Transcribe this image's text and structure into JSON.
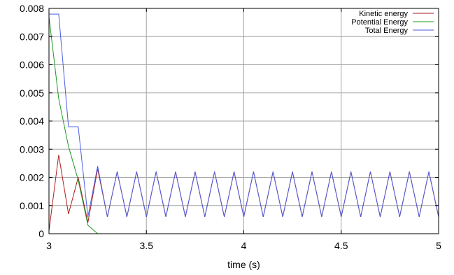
{
  "chart_data": {
    "type": "line",
    "title": "",
    "xlabel": "time (s)",
    "ylabel": "",
    "xlim": [
      3,
      5
    ],
    "ylim": [
      0,
      0.008
    ],
    "x_ticks": [
      3,
      3.5,
      4,
      4.5,
      5
    ],
    "x_tick_labels": [
      "3",
      "3.5",
      "4",
      "4.5",
      "5"
    ],
    "y_ticks": [
      0,
      0.001,
      0.002,
      0.003,
      0.004,
      0.005,
      0.006,
      0.007,
      0.008
    ],
    "y_tick_labels": [
      "0",
      "0.001",
      "0.002",
      "0.003",
      "0.004",
      "0.005",
      "0.006",
      "0.007",
      "0.008"
    ],
    "grid": true,
    "legend_position": "top-right",
    "series": [
      {
        "name": "Kinetic energy",
        "color": "#b01c1c",
        "x": [
          3.0,
          3.05,
          3.1,
          3.15,
          3.2,
          3.25,
          3.3,
          3.35,
          3.4,
          3.45,
          3.5,
          3.55,
          3.6,
          3.65,
          3.7,
          3.75,
          3.8,
          3.85,
          3.9,
          3.95,
          4.0,
          4.05,
          4.1,
          4.15,
          4.2,
          4.25,
          4.3,
          4.35,
          4.4,
          4.45,
          4.5,
          4.55,
          4.6,
          4.65,
          4.7,
          4.75,
          4.8,
          4.85,
          4.9,
          4.95,
          5.0
        ],
        "y": [
          0.0001,
          0.0028,
          0.0007,
          0.002,
          0.0004,
          0.0023,
          0.0006,
          0.0022,
          0.0006,
          0.0022,
          0.0006,
          0.0022,
          0.0006,
          0.0022,
          0.0006,
          0.0022,
          0.0006,
          0.0022,
          0.0006,
          0.0022,
          0.0006,
          0.0022,
          0.0006,
          0.0022,
          0.0006,
          0.0022,
          0.0006,
          0.0022,
          0.0006,
          0.0022,
          0.0006,
          0.0022,
          0.0006,
          0.0022,
          0.0006,
          0.0022,
          0.0006,
          0.0022,
          0.0006,
          0.0022,
          0.0006
        ]
      },
      {
        "name": "Potential Energy",
        "color": "#1f9a1f",
        "x": [
          3.0,
          3.05,
          3.1,
          3.15,
          3.2,
          3.25,
          5.0
        ],
        "y": [
          0.0077,
          0.0048,
          0.0031,
          0.0019,
          0.0003,
          0.0,
          0.0
        ]
      },
      {
        "name": "Total Energy",
        "color": "#4a5ee0",
        "x": [
          3.0,
          3.05,
          3.1,
          3.15,
          3.2,
          3.25,
          3.3,
          3.35,
          3.4,
          3.45,
          3.5,
          3.55,
          3.6,
          3.65,
          3.7,
          3.75,
          3.8,
          3.85,
          3.9,
          3.95,
          4.0,
          4.05,
          4.1,
          4.15,
          4.2,
          4.25,
          4.3,
          4.35,
          4.4,
          4.45,
          4.5,
          4.55,
          4.6,
          4.65,
          4.7,
          4.75,
          4.8,
          4.85,
          4.9,
          4.95,
          5.0
        ],
        "y": [
          0.0078,
          0.0078,
          0.0038,
          0.0038,
          0.0006,
          0.0024,
          0.0006,
          0.0022,
          0.0006,
          0.0022,
          0.0006,
          0.0022,
          0.0006,
          0.0022,
          0.0006,
          0.0022,
          0.0006,
          0.0022,
          0.0006,
          0.0022,
          0.0006,
          0.0022,
          0.0006,
          0.0022,
          0.0006,
          0.0022,
          0.0006,
          0.0022,
          0.0006,
          0.0022,
          0.0006,
          0.0022,
          0.0006,
          0.0022,
          0.0006,
          0.0022,
          0.0006,
          0.0022,
          0.0006,
          0.0022,
          0.0006
        ]
      }
    ]
  }
}
